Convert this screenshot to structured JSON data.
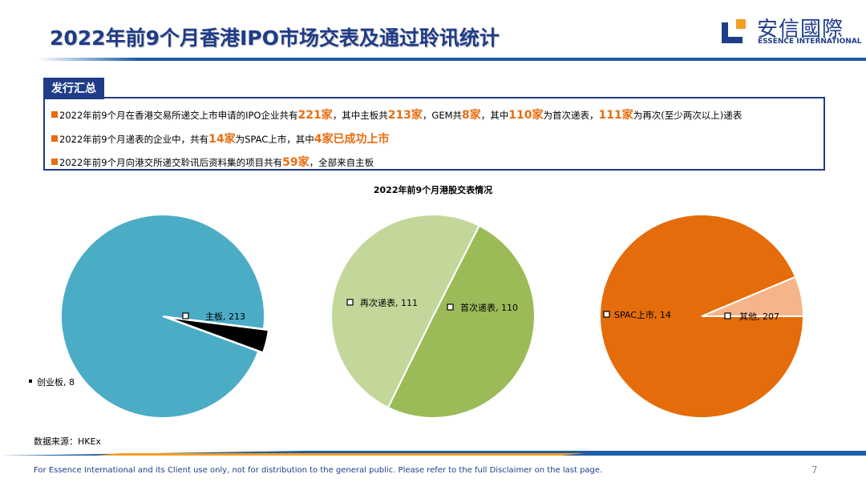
{
  "header": {
    "title": "2022年前9个月香港IPO市场交表及通过聆讯统计",
    "logo_cn": "安信國際",
    "logo_en": "ESSENCE INTERNATIONAL"
  },
  "summary": {
    "tag": "发行汇总",
    "lines": [
      [
        {
          "t": "2022年前9个月在香港交易所递交上市申请的IPO企业共有"
        },
        {
          "t": "221家",
          "hl": true
        },
        {
          "t": "，其中主板共"
        },
        {
          "t": "213家",
          "hl": true
        },
        {
          "t": "，GEM共"
        },
        {
          "t": "8家",
          "hl": true
        },
        {
          "t": "，其中"
        },
        {
          "t": "110家",
          "hl": true
        },
        {
          "t": "为首次递表，"
        },
        {
          "t": "111家",
          "hl": true
        },
        {
          "t": "为再次(至少两次以上)递表"
        }
      ],
      [
        {
          "t": "2022年前9个月递表的企业中，共有"
        },
        {
          "t": "14家",
          "hl": true
        },
        {
          "t": "为SPAC上市，其中"
        },
        {
          "t": "4家已成功上市",
          "hl": true
        }
      ],
      [
        {
          "t": "2022年前9个月向港交所递交聆讯后资料集的项目共有"
        },
        {
          "t": "59家",
          "hl": true
        },
        {
          "t": "，全部来自主板"
        }
      ]
    ]
  },
  "chart_data": {
    "title": "2022年前9个月港股交表情况",
    "type": "pie",
    "pies": [
      {
        "slices": [
          {
            "label": "主板",
            "value": 213,
            "color": "#4bacc6"
          },
          {
            "label": "创业板",
            "value": 8,
            "color": "#000000"
          }
        ]
      },
      {
        "slices": [
          {
            "label": "首次递表",
            "value": 110,
            "color": "#9bbb59"
          },
          {
            "label": "再次递表",
            "value": 111,
            "color": "#c4d79b"
          }
        ]
      },
      {
        "slices": [
          {
            "label": "其他",
            "value": 207,
            "color": "#e46c0a"
          },
          {
            "label": "SPAC上市",
            "value": 14,
            "color": "#f5b48a"
          }
        ]
      }
    ]
  },
  "source": "数据来源：HKEx",
  "footer": {
    "disclaimer": "For Essence International and its Client use only, not for distribution to the general public. Please refer to the full Disclaimer on the last page.",
    "page": "7"
  }
}
